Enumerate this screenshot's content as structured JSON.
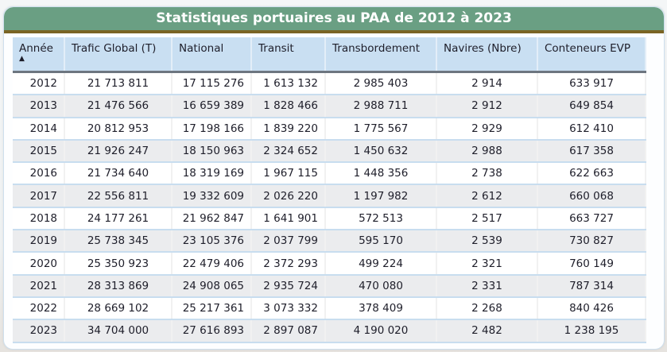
{
  "title": "Statistiques portuaires au PAA de 2012 à 2023",
  "columns": [
    "Année",
    "Trafic Global (T)",
    "National",
    "Transit",
    "Transbordement",
    "Navires (Nbre)",
    "Conteneurs EVP"
  ],
  "sort": {
    "column": "Année",
    "direction": "ascending",
    "icon": "sort-ascending-triangle"
  },
  "rows": [
    [
      "2012",
      "21 713 811",
      "17 115 276",
      "1 613 132",
      "2 985 403",
      "2 914",
      "633 917"
    ],
    [
      "2013",
      "21 476 566",
      "16 659 389",
      "1 828 466",
      "2 988 711",
      "2 912",
      "649 854"
    ],
    [
      "2014",
      "20 812 953",
      "17 198 166",
      "1 839 220",
      "1 775 567",
      "2 929",
      "612 410"
    ],
    [
      "2015",
      "21 926 247",
      "18 150 963",
      "2 324 652",
      "1 450 632",
      "2 988",
      "617 358"
    ],
    [
      "2016",
      "21 734 640",
      "18 319 169",
      "1 967 115",
      "1 448 356",
      "2 738",
      "622 663"
    ],
    [
      "2017",
      "22 556 811",
      "19 332 609",
      "2 026 220",
      "1 197 982",
      "2 612",
      "660 068"
    ],
    [
      "2018",
      "24 177 261",
      "21 962 847",
      "1 641 901",
      "572 513",
      "2 517",
      "663 727"
    ],
    [
      "2019",
      "25 738 345",
      "23 105 376",
      "2 037 799",
      "595 170",
      "2 539",
      "730 827"
    ],
    [
      "2020",
      "25 350 923",
      "22 479 406",
      "2 372 293",
      "499 224",
      "2 321",
      "760 149"
    ],
    [
      "2021",
      "28 313 869",
      "24 908 065",
      "2 935 724",
      "470 080",
      "2 331",
      "787 314"
    ],
    [
      "2022",
      "28 669 102",
      "25 217 361",
      "3 073 332",
      "378 409",
      "2 268",
      "840 426"
    ],
    [
      "2023",
      "34 704 000",
      "27 616 893",
      "2 897 087",
      "4 190 020",
      "2 482",
      "1 238 195"
    ]
  ],
  "colors": {
    "title_bg": "#6a9f83",
    "title_border": "#7a6424",
    "header_bg": "#c9dff2",
    "alt_row": "#ebecee"
  }
}
